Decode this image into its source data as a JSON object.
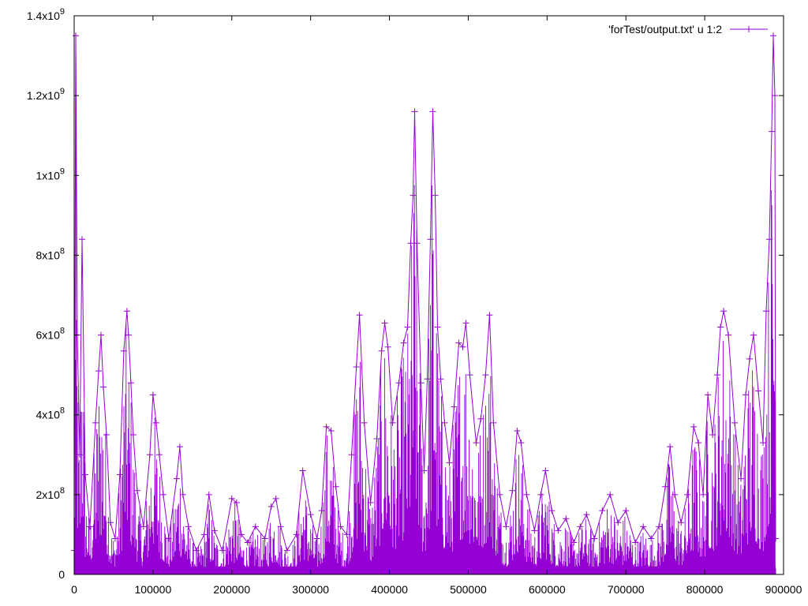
{
  "chart_data": {
    "type": "line",
    "title": "",
    "xlabel": "",
    "ylabel": "",
    "xlim": [
      0,
      900000
    ],
    "ylim": [
      0,
      1400000000
    ],
    "grid": false,
    "legend": {
      "position": "top-right",
      "show": true
    },
    "series_color": "#9400d3",
    "marker": "plus",
    "x_ticks": [
      {
        "value": 0,
        "label": "0"
      },
      {
        "value": 100000,
        "label": "100000"
      },
      {
        "value": 200000,
        "label": "200000"
      },
      {
        "value": 300000,
        "label": "300000"
      },
      {
        "value": 400000,
        "label": "400000"
      },
      {
        "value": 500000,
        "label": "500000"
      },
      {
        "value": 600000,
        "label": "600000"
      },
      {
        "value": 700000,
        "label": "700000"
      },
      {
        "value": 800000,
        "label": "800000"
      },
      {
        "value": 900000,
        "label": "900000"
      }
    ],
    "y_ticks": [
      {
        "value": 0,
        "mantissa": "0",
        "exp": ""
      },
      {
        "value": 200000000,
        "mantissa": "2x10",
        "exp": "8"
      },
      {
        "value": 400000000,
        "mantissa": "4x10",
        "exp": "8"
      },
      {
        "value": 600000000,
        "mantissa": "6x10",
        "exp": "8"
      },
      {
        "value": 800000000,
        "mantissa": "8x10",
        "exp": "8"
      },
      {
        "value": 1000000000,
        "mantissa": "1x10",
        "exp": "9"
      },
      {
        "value": 1200000000,
        "mantissa": "1.2x10",
        "exp": "9"
      },
      {
        "value": 1400000000,
        "mantissa": "1.4x10",
        "exp": "9"
      }
    ],
    "series": [
      {
        "name": "'forTest/output.txt' u 1:2",
        "x": [
          0,
          2000,
          4000,
          7000,
          10000,
          14000,
          20000,
          27000,
          31000,
          34000,
          37000,
          41000,
          46000,
          52000,
          58000,
          63000,
          67000,
          69000,
          72000,
          75000,
          80000,
          88000,
          96000,
          100000,
          104000,
          108000,
          113000,
          120000,
          130000,
          134000,
          138000,
          145000,
          155000,
          165000,
          171000,
          178000,
          188000,
          200000,
          206000,
          212000,
          220000,
          230000,
          242000,
          250000,
          256000,
          262000,
          270000,
          282000,
          290000,
          300000,
          308000,
          314000,
          320000,
          326000,
          332000,
          338000,
          346000,
          352000,
          358000,
          362000,
          368000,
          376000,
          384000,
          390000,
          394000,
          398000,
          404000,
          412000,
          418000,
          423000,
          427000,
          430000,
          432000,
          435000,
          440000,
          444000,
          448000,
          452000,
          455000,
          458000,
          461000,
          465000,
          470000,
          476000,
          482000,
          488000,
          493000,
          497000,
          502000,
          510000,
          516000,
          522000,
          527000,
          532000,
          540000,
          548000,
          556000,
          562000,
          567000,
          574000,
          584000,
          592000,
          598000,
          606000,
          614000,
          624000,
          634000,
          642000,
          650000,
          660000,
          670000,
          680000,
          690000,
          700000,
          712000,
          722000,
          732000,
          742000,
          750000,
          756000,
          762000,
          770000,
          778000,
          786000,
          792000,
          798000,
          804000,
          810000,
          816000,
          820000,
          824000,
          830000,
          838000,
          846000,
          852000,
          857000,
          862000,
          868000,
          874000,
          878000,
          882000,
          885000,
          887000,
          889000,
          890000
        ],
        "values": [
          60000000,
          1350000000,
          600000000,
          300000000,
          840000000,
          250000000,
          120000000,
          380000000,
          510000000,
          600000000,
          470000000,
          350000000,
          130000000,
          90000000,
          250000000,
          560000000,
          660000000,
          600000000,
          480000000,
          350000000,
          210000000,
          120000000,
          300000000,
          450000000,
          380000000,
          300000000,
          200000000,
          90000000,
          240000000,
          320000000,
          200000000,
          120000000,
          60000000,
          100000000,
          200000000,
          110000000,
          60000000,
          190000000,
          180000000,
          100000000,
          80000000,
          120000000,
          90000000,
          170000000,
          190000000,
          120000000,
          60000000,
          100000000,
          260000000,
          150000000,
          90000000,
          160000000,
          370000000,
          360000000,
          220000000,
          120000000,
          100000000,
          300000000,
          520000000,
          650000000,
          380000000,
          180000000,
          340000000,
          560000000,
          630000000,
          570000000,
          380000000,
          480000000,
          580000000,
          620000000,
          830000000,
          950000000,
          1160000000,
          830000000,
          480000000,
          260000000,
          490000000,
          840000000,
          1160000000,
          950000000,
          620000000,
          490000000,
          380000000,
          280000000,
          420000000,
          580000000,
          570000000,
          630000000,
          500000000,
          330000000,
          390000000,
          500000000,
          650000000,
          380000000,
          200000000,
          120000000,
          210000000,
          360000000,
          330000000,
          200000000,
          110000000,
          200000000,
          260000000,
          160000000,
          110000000,
          140000000,
          80000000,
          120000000,
          150000000,
          90000000,
          160000000,
          200000000,
          130000000,
          160000000,
          80000000,
          120000000,
          90000000,
          120000000,
          220000000,
          320000000,
          200000000,
          130000000,
          200000000,
          370000000,
          330000000,
          200000000,
          450000000,
          350000000,
          500000000,
          620000000,
          660000000,
          600000000,
          380000000,
          240000000,
          450000000,
          540000000,
          600000000,
          460000000,
          330000000,
          660000000,
          840000000,
          1110000000,
          1350000000,
          1200000000,
          90000000
        ]
      }
    ]
  }
}
